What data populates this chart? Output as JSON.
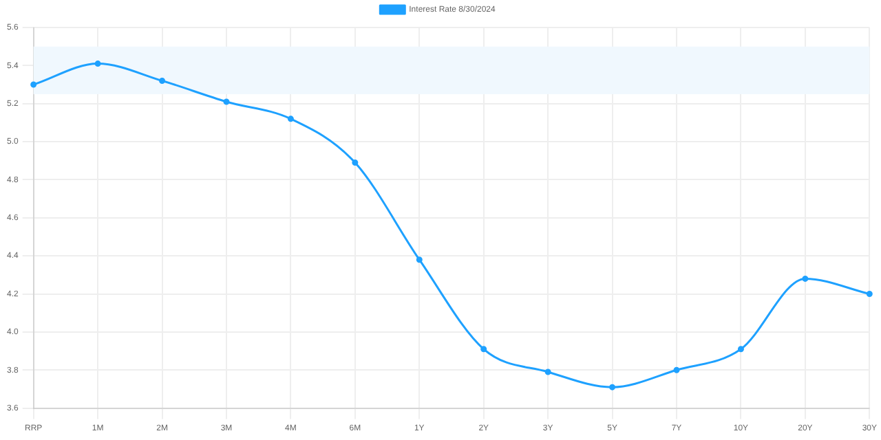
{
  "chart_data": {
    "type": "line",
    "categories": [
      "RRP",
      "1M",
      "2M",
      "3M",
      "4M",
      "6M",
      "1Y",
      "2Y",
      "3Y",
      "5Y",
      "7Y",
      "10Y",
      "20Y",
      "30Y"
    ],
    "series": [
      {
        "name": "Interest Rate 8/30/2024",
        "color": "#1ea1ff",
        "values": [
          5.3,
          5.41,
          5.32,
          5.21,
          5.12,
          4.89,
          4.38,
          3.91,
          3.79,
          3.71,
          3.8,
          3.91,
          4.28,
          4.2
        ]
      }
    ],
    "ylim": [
      3.6,
      5.6
    ],
    "yticks": [
      3.6,
      3.8,
      {
        "value": 4,
        "label": "4.0"
      },
      4.2,
      4.4,
      4.6,
      4.8,
      {
        "value": 5,
        "label": "5.0"
      },
      5.2,
      5.4,
      5.6
    ],
    "bands": [
      {
        "axis": "y",
        "from": 5.25,
        "to": 5.5,
        "color": "#f0f8fe"
      }
    ],
    "grid": true,
    "legend": "top",
    "marker": "circle",
    "line_style": "solid"
  }
}
